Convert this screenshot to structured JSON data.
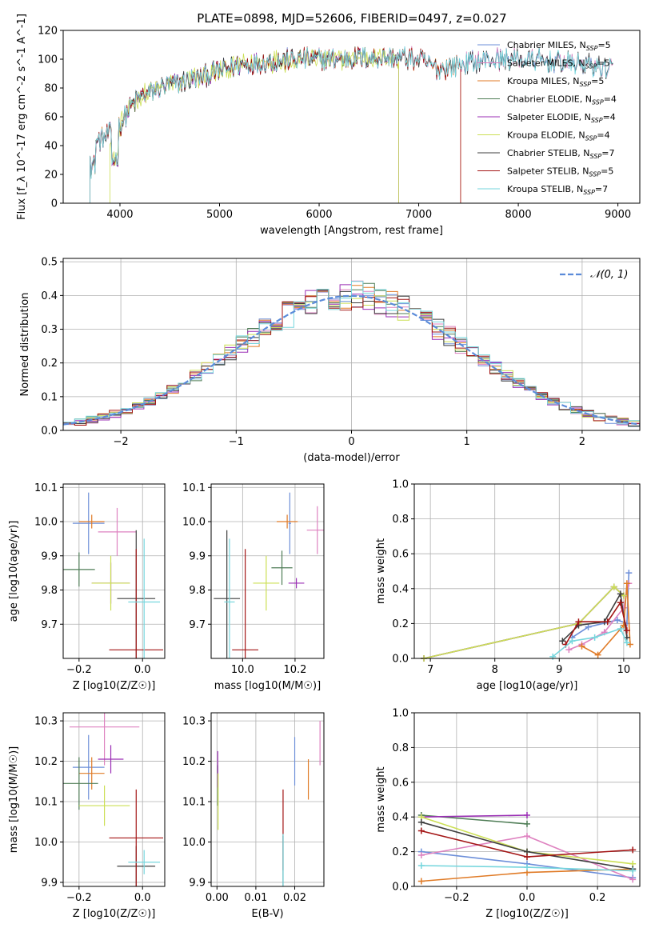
{
  "figure": {
    "title": "PLATE=0898, MJD=52606, FIBERID=0497, z=0.027"
  },
  "colors": {
    "Chabrier MILES": "#6d8fd9",
    "Salpeter MILES": "#de82c0",
    "Kroupa MILES": "#e07b27",
    "Chabrier ELODIE": "#4f7d56",
    "Salpeter ELODIE": "#9b2fb5",
    "Kroupa ELODIE": "#ccdf55",
    "Chabrier STELIB": "#3f3f3f",
    "Salpeter STELIB": "#a31515",
    "Kroupa STELIB": "#76d6dd"
  },
  "chart_data": [
    {
      "id": "spectrum",
      "type": "line",
      "title": "PLATE=0898, MJD=52606, FIBERID=0497, z=0.027",
      "xlabel": "wavelength [Angstrom, rest frame]",
      "ylabel": "Flux [f_λ 10^-17 erg cm^-2 s^-1 A^-1]",
      "xlim": [
        3430,
        9220
      ],
      "ylim": [
        0,
        120
      ],
      "xticks": [
        4000,
        5000,
        6000,
        7000,
        8000,
        9000
      ],
      "yticks": [
        0,
        20,
        40,
        60,
        80,
        100,
        120
      ],
      "grid": false,
      "legend_position": "top-right",
      "legend": [
        {
          "label": "Chabrier MILES, N",
          "sub": "SSP",
          "suffix": "=5",
          "model": "Chabrier MILES"
        },
        {
          "label": "Salpeter MILES, N",
          "sub": "SSP",
          "suffix": "=5",
          "model": "Salpeter MILES"
        },
        {
          "label": "Kroupa MILES, N",
          "sub": "SSP",
          "suffix": "=5",
          "model": "Kroupa MILES"
        },
        {
          "label": "Chabrier ELODIE, N",
          "sub": "SSP",
          "suffix": "=4",
          "model": "Chabrier ELODIE"
        },
        {
          "label": "Salpeter ELODIE, N",
          "sub": "SSP",
          "suffix": "=4",
          "model": "Salpeter ELODIE"
        },
        {
          "label": "Kroupa ELODIE, N",
          "sub": "SSP",
          "suffix": "=4",
          "model": "Kroupa ELODIE"
        },
        {
          "label": "Chabrier STELIB, N",
          "sub": "SSP",
          "suffix": "=7",
          "model": "Chabrier STELIB"
        },
        {
          "label": "Salpeter STELIB, N",
          "sub": "SSP",
          "suffix": "=5",
          "model": "Salpeter STELIB"
        },
        {
          "label": "Kroupa STELIB, N",
          "sub": "SSP",
          "suffix": "=7",
          "model": "Kroupa STELIB"
        }
      ],
      "continuum": {
        "x": [
          3700,
          3800,
          3900,
          4000,
          4100,
          4200,
          4400,
          4600,
          4800,
          5000,
          5200,
          5400,
          5600,
          5800,
          6000,
          6200,
          6400,
          6600,
          6800,
          7000,
          7100,
          7200,
          7400,
          7600,
          7800,
          8000,
          8200,
          8400,
          8600,
          8800,
          8950
        ],
        "y": [
          40,
          44,
          48,
          54,
          66,
          74,
          80,
          84,
          87,
          92,
          96,
          98,
          99,
          100,
          100,
          100,
          101,
          101,
          101,
          100,
          96,
          93,
          96,
          99,
          100,
          100,
          99,
          98,
          97,
          95,
          94
        ]
      },
      "series_ranges": [
        {
          "model": "Chabrier MILES",
          "x": [
            3700,
            8950
          ]
        },
        {
          "model": "Salpeter MILES",
          "x": [
            3700,
            8950
          ]
        },
        {
          "model": "Kroupa MILES",
          "x": [
            3700,
            7420
          ]
        },
        {
          "model": "Chabrier ELODIE",
          "x": [
            3700,
            6800
          ]
        },
        {
          "model": "Salpeter ELODIE",
          "x": [
            3700,
            6800
          ]
        },
        {
          "model": "Kroupa ELODIE",
          "x": [
            3900,
            6800
          ]
        },
        {
          "model": "Chabrier STELIB",
          "x": [
            3700,
            8950
          ]
        },
        {
          "model": "Salpeter STELIB",
          "x": [
            3700,
            7420
          ]
        },
        {
          "model": "Kroupa STELIB",
          "x": [
            3700,
            8950
          ]
        }
      ]
    },
    {
      "id": "residuals",
      "type": "histogram",
      "xlabel": "(data-model)/error",
      "ylabel": "Normed distribution",
      "xlim": [
        -2.5,
        2.5
      ],
      "ylim": [
        0,
        0.51
      ],
      "xticks": [
        -2,
        -1,
        0,
        1,
        2
      ],
      "yticks": [
        0.0,
        0.1,
        0.2,
        0.3,
        0.4,
        0.5
      ],
      "grid": true,
      "legend_position": "top-right",
      "reference_curve": {
        "label": "𝒩(0, 1)",
        "mean": 0,
        "sigma": 1,
        "color": "#5b8bd9"
      },
      "bin_width": 0.1
    },
    {
      "id": "age_vs_Z",
      "type": "errorbar",
      "xlabel": "Z [log10(Z/Z☉)]",
      "ylabel": "age  [log10(age/yr)]",
      "xlim": [
        -0.25,
        0.07
      ],
      "ylim": [
        9.6,
        10.11
      ],
      "xticks": [
        -0.2,
        0.0
      ],
      "yticks": [
        9.7,
        9.8,
        9.9,
        10.0,
        10.1
      ],
      "grid": true,
      "points": [
        {
          "model": "Chabrier MILES",
          "x": -0.17,
          "xerr": 0.05,
          "y": 9.995,
          "yerr": 0.09
        },
        {
          "model": "Salpeter MILES",
          "x": -0.08,
          "xerr": 0.06,
          "y": 9.97,
          "yerr": 0.07
        },
        {
          "model": "Kroupa MILES",
          "x": -0.16,
          "xerr": 0.04,
          "y": 10.0,
          "yerr": 0.02
        },
        {
          "model": "Chabrier ELODIE",
          "x": -0.2,
          "xerr": 0.05,
          "y": 9.86,
          "yerr": 0.05
        },
        {
          "model": "Salpeter ELODIE",
          "x": -0.1,
          "xerr": 0.06,
          "y": 9.82,
          "yerr": 0.06
        },
        {
          "model": "Kroupa ELODIE",
          "x": -0.1,
          "xerr": 0.06,
          "y": 9.82,
          "yerr": 0.08
        },
        {
          "model": "Chabrier STELIB",
          "x": -0.02,
          "xerr": 0.06,
          "y": 9.775,
          "yerr": 0.2
        },
        {
          "model": "Salpeter STELIB",
          "x": -0.02,
          "xerr": 0.085,
          "y": 9.625,
          "yerr": 0.295
        },
        {
          "model": "Kroupa STELIB",
          "x": 0.005,
          "xerr": 0.05,
          "y": 9.765,
          "yerr": 0.185
        }
      ]
    },
    {
      "id": "age_vs_mass",
      "type": "errorbar",
      "xlabel": "mass [log10(M/M☉)]",
      "ylabel": "",
      "xlim": [
        9.88,
        10.31
      ],
      "ylim": [
        9.6,
        10.11
      ],
      "xticks": [
        10.0,
        10.2
      ],
      "yticks": [
        9.7,
        9.8,
        9.9,
        10.0,
        10.1
      ],
      "grid": true,
      "points": [
        {
          "model": "Chabrier MILES",
          "x": 10.18,
          "xerr": 0.005,
          "y": 9.995,
          "yerr": 0.09
        },
        {
          "model": "Salpeter MILES",
          "x": 10.285,
          "xerr": 0.04,
          "y": 9.975,
          "yerr": 0.07
        },
        {
          "model": "Kroupa MILES",
          "x": 10.17,
          "xerr": 0.04,
          "y": 10.0,
          "yerr": 0.02
        },
        {
          "model": "Chabrier ELODIE",
          "x": 10.15,
          "xerr": 0.04,
          "y": 9.865,
          "yerr": 0.05
        },
        {
          "model": "Salpeter ELODIE",
          "x": 10.205,
          "xerr": 0.03,
          "y": 9.82,
          "yerr": 0.015
        },
        {
          "model": "Kroupa ELODIE",
          "x": 10.09,
          "xerr": 0.05,
          "y": 9.82,
          "yerr": 0.08
        },
        {
          "model": "Chabrier STELIB",
          "x": 9.94,
          "xerr": 0.05,
          "y": 9.775,
          "yerr": 0.2
        },
        {
          "model": "Salpeter STELIB",
          "x": 10.01,
          "xerr": 0.05,
          "y": 9.625,
          "yerr": 0.295
        },
        {
          "model": "Kroupa STELIB",
          "x": 9.95,
          "xerr": 0.02,
          "y": 9.765,
          "yerr": 0.185
        }
      ]
    },
    {
      "id": "weight_vs_age",
      "type": "line",
      "xlabel": "age  [log10(age/yr)]",
      "ylabel": "mass weight",
      "xlim": [
        6.75,
        10.25
      ],
      "ylim": [
        0,
        1.0
      ],
      "xticks": [
        7,
        8,
        9,
        10
      ],
      "yticks": [
        0.0,
        0.2,
        0.4,
        0.6,
        0.8,
        1.0
      ],
      "grid": true,
      "series": [
        {
          "model": "Chabrier MILES",
          "x": [
            9.2,
            9.45,
            9.9,
            10.05,
            10.08
          ],
          "y": [
            0.12,
            0.18,
            0.22,
            0.2,
            0.49
          ]
        },
        {
          "model": "Salpeter MILES",
          "x": [
            9.15,
            9.35,
            9.7,
            10.0,
            10.08
          ],
          "y": [
            0.05,
            0.08,
            0.15,
            0.29,
            0.43
          ]
        },
        {
          "model": "Kroupa MILES",
          "x": [
            9.35,
            9.6,
            10.0,
            10.05,
            10.1
          ],
          "y": [
            0.07,
            0.02,
            0.19,
            0.43,
            0.08
          ]
        },
        {
          "model": "Chabrier ELODIE",
          "x": [
            6.9,
            9.3,
            9.85,
            10.0
          ],
          "y": [
            0.0,
            0.2,
            0.41,
            0.36
          ]
        },
        {
          "model": "Salpeter ELODIE",
          "x": [
            6.9,
            9.3,
            9.85,
            10.0
          ],
          "y": [
            0.0,
            0.2,
            0.41,
            0.36
          ]
        },
        {
          "model": "Kroupa ELODIE",
          "x": [
            6.9,
            9.3,
            9.85,
            10.0
          ],
          "y": [
            0.0,
            0.2,
            0.41,
            0.36
          ]
        },
        {
          "model": "Chabrier STELIB",
          "x": [
            9.05,
            9.3,
            9.7,
            9.95,
            10.05
          ],
          "y": [
            0.1,
            0.19,
            0.21,
            0.37,
            0.12
          ]
        },
        {
          "model": "Salpeter STELIB",
          "x": [
            9.1,
            9.3,
            9.75,
            9.95,
            10.05
          ],
          "y": [
            0.08,
            0.21,
            0.21,
            0.32,
            0.16
          ]
        },
        {
          "model": "Kroupa STELIB",
          "x": [
            8.9,
            9.2,
            9.55,
            9.95,
            10.05
          ],
          "y": [
            0.01,
            0.1,
            0.12,
            0.17,
            0.09
          ]
        }
      ]
    },
    {
      "id": "mass_vs_Z",
      "type": "errorbar",
      "xlabel": "Z [log10(Z/Z☉)]",
      "ylabel": "mass [log10(M/M☉)]",
      "xlim": [
        -0.25,
        0.07
      ],
      "ylim": [
        9.89,
        10.32
      ],
      "xticks": [
        -0.2,
        0.0
      ],
      "yticks": [
        9.9,
        10.0,
        10.1,
        10.2,
        10.3
      ],
      "grid": true,
      "points": [
        {
          "model": "Chabrier MILES",
          "x": -0.17,
          "xerr": 0.05,
          "y": 10.185,
          "yerr": 0.08
        },
        {
          "model": "Salpeter MILES",
          "x": -0.12,
          "xerr": 0.11,
          "y": 10.285,
          "yerr": 0.095
        },
        {
          "model": "Kroupa MILES",
          "x": -0.16,
          "xerr": 0.04,
          "y": 10.17,
          "yerr": 0.04
        },
        {
          "model": "Chabrier ELODIE",
          "x": -0.2,
          "xerr": 0.06,
          "y": 10.145,
          "yerr": 0.065
        },
        {
          "model": "Salpeter ELODIE",
          "x": -0.1,
          "xerr": 0.04,
          "y": 10.205,
          "yerr": 0.035
        },
        {
          "model": "Kroupa ELODIE",
          "x": -0.12,
          "xerr": 0.08,
          "y": 10.09,
          "yerr": 0.05
        },
        {
          "model": "Chabrier STELIB",
          "x": -0.02,
          "xerr": 0.06,
          "y": 9.94,
          "yerr": 0.05
        },
        {
          "model": "Salpeter STELIB",
          "x": -0.02,
          "xerr": 0.085,
          "y": 10.01,
          "yerr": 0.12
        },
        {
          "model": "Kroupa STELIB",
          "x": 0.005,
          "xerr": 0.05,
          "y": 9.95,
          "yerr": 0.03
        }
      ]
    },
    {
      "id": "mass_vs_EBV",
      "type": "errorbar",
      "xlabel": "E(B-V)",
      "ylabel": "",
      "xlim": [
        -0.0015,
        0.0275
      ],
      "ylim": [
        9.89,
        10.32
      ],
      "xticks": [
        0.0,
        0.01,
        0.02
      ],
      "yticks": [
        9.9,
        10.0,
        10.1,
        10.2,
        10.3
      ],
      "grid": true,
      "points": [
        {
          "model": "Chabrier MILES",
          "x": 0.02,
          "xerr": 0,
          "y": 10.2,
          "yerr": 0.06
        },
        {
          "model": "Salpeter MILES",
          "x": 0.0265,
          "xerr": 0,
          "y": 10.245,
          "yerr": 0.055
        },
        {
          "model": "Kroupa MILES",
          "x": 0.0235,
          "xerr": 0,
          "y": 10.155,
          "yerr": 0.05
        },
        {
          "model": "Chabrier ELODIE",
          "x": 0.0002,
          "xerr": 0,
          "y": 10.14,
          "yerr": 0.05
        },
        {
          "model": "Salpeter ELODIE",
          "x": 0.0002,
          "xerr": 0,
          "y": 10.18,
          "yerr": 0.045
        },
        {
          "model": "Kroupa ELODIE",
          "x": 0.0003,
          "xerr": 0,
          "y": 10.1,
          "yerr": 0.07
        },
        {
          "model": "Chabrier STELIB",
          "x": 0.017,
          "xerr": 0,
          "y": 9.94,
          "yerr": 0.075
        },
        {
          "model": "Salpeter STELIB",
          "x": 0.017,
          "xerr": 0,
          "y": 10.03,
          "yerr": 0.1
        },
        {
          "model": "Kroupa STELIB",
          "x": 0.017,
          "xerr": 0,
          "y": 9.95,
          "yerr": 0.07
        }
      ]
    },
    {
      "id": "weight_vs_Z",
      "type": "line",
      "xlabel": "Z [log10(Z/Z☉)]",
      "ylabel": "mass weight",
      "xlim": [
        -0.32,
        0.32
      ],
      "ylim": [
        0,
        1.0
      ],
      "xticks": [
        -0.2,
        0.0,
        0.2
      ],
      "yticks": [
        0.0,
        0.2,
        0.4,
        0.6,
        0.8,
        1.0
      ],
      "grid": true,
      "series": [
        {
          "model": "Chabrier MILES",
          "x": [
            -0.3,
            0.0,
            0.3
          ],
          "y": [
            0.2,
            0.13,
            0.05
          ]
        },
        {
          "model": "Salpeter MILES",
          "x": [
            -0.3,
            0.0,
            0.3
          ],
          "y": [
            0.18,
            0.29,
            0.04
          ]
        },
        {
          "model": "Kroupa MILES",
          "x": [
            -0.3,
            0.0,
            0.3
          ],
          "y": [
            0.03,
            0.08,
            0.1
          ]
        },
        {
          "model": "Chabrier ELODIE",
          "x": [
            -0.3,
            0.0
          ],
          "y": [
            0.41,
            0.36
          ]
        },
        {
          "model": "Salpeter ELODIE",
          "x": [
            -0.3,
            0.0
          ],
          "y": [
            0.4,
            0.41
          ]
        },
        {
          "model": "Kroupa ELODIE",
          "x": [
            -0.3,
            0.0,
            0.3
          ],
          "y": [
            0.4,
            0.2,
            0.13
          ]
        },
        {
          "model": "Chabrier STELIB",
          "x": [
            -0.3,
            0.0,
            0.3
          ],
          "y": [
            0.37,
            0.2,
            0.1
          ]
        },
        {
          "model": "Salpeter STELIB",
          "x": [
            -0.3,
            0.0,
            0.3
          ],
          "y": [
            0.32,
            0.17,
            0.21
          ]
        },
        {
          "model": "Kroupa STELIB",
          "x": [
            -0.3,
            0.0,
            0.3
          ],
          "y": [
            0.12,
            0.11,
            0.09
          ]
        }
      ]
    }
  ]
}
